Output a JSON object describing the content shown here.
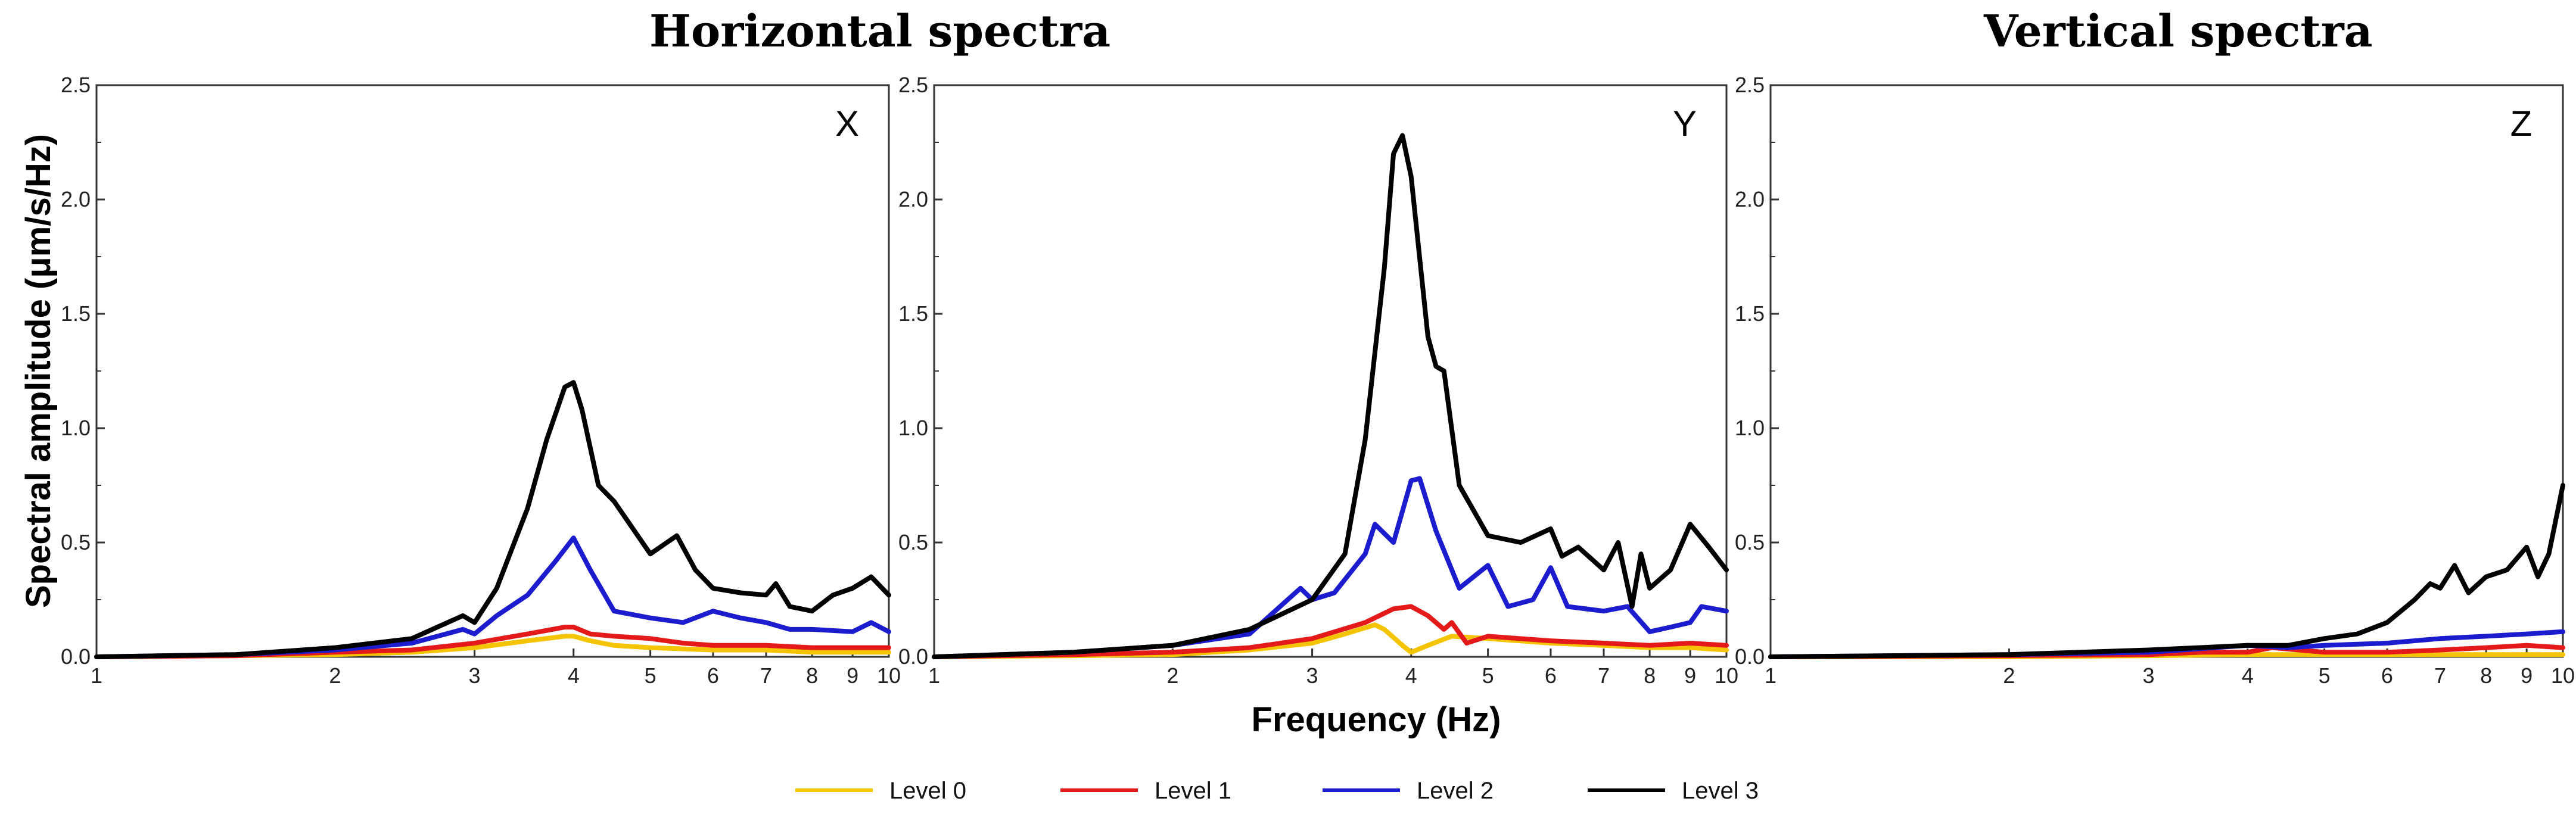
{
  "titles": {
    "horizontal": "Horizontal spectra",
    "vertical": "Vertical spectra"
  },
  "colors": {
    "level0": "#f5c400",
    "level1": "#e41a1a",
    "level2": "#1c1ccf",
    "level3": "#000000"
  },
  "chart_data": {
    "type": "line",
    "xlabel": "Frequency (Hz)",
    "ylabel": "Spectral amplitude (μm/s/Hz)",
    "xscale": "log",
    "xlim": [
      1,
      10
    ],
    "ylim": [
      0,
      2.5
    ],
    "xticks": [
      1,
      2,
      3,
      4,
      5,
      6,
      7,
      8,
      9,
      10
    ],
    "xtick_labels": [
      "1",
      "2",
      "3",
      "4",
      "5",
      "6",
      "7",
      "8",
      "9",
      "10"
    ],
    "yticks": [
      0,
      0.5,
      1.0,
      1.5,
      2.0,
      2.5
    ],
    "ytick_labels": [
      "0.0",
      "0.5",
      "1.0",
      "1.5",
      "2.0",
      "2.5"
    ],
    "legend": [
      "Level 0",
      "Level 1",
      "Level 2",
      "Level 3"
    ],
    "panels": [
      {
        "label": "X",
        "series": [
          {
            "name": "Level 0",
            "x": [
              1.0,
              1.5,
              2.0,
              2.5,
              3.0,
              3.5,
              3.9,
              4.0,
              4.2,
              4.5,
              5.0,
              6.0,
              7.0,
              8.0,
              9.0,
              10.0
            ],
            "y": [
              0.0,
              0.005,
              0.01,
              0.02,
              0.04,
              0.07,
              0.09,
              0.09,
              0.07,
              0.05,
              0.04,
              0.03,
              0.03,
              0.02,
              0.02,
              0.02
            ]
          },
          {
            "name": "Level 1",
            "x": [
              1.0,
              1.5,
              2.0,
              2.5,
              3.0,
              3.5,
              3.9,
              4.0,
              4.2,
              4.5,
              5.0,
              5.5,
              6.0,
              7.0,
              8.0,
              9.0,
              10.0
            ],
            "y": [
              0.0,
              0.005,
              0.02,
              0.03,
              0.06,
              0.1,
              0.13,
              0.13,
              0.1,
              0.09,
              0.08,
              0.06,
              0.05,
              0.05,
              0.04,
              0.04,
              0.04
            ]
          },
          {
            "name": "Level 2",
            "x": [
              1.0,
              1.5,
              2.0,
              2.5,
              2.9,
              3.0,
              3.2,
              3.5,
              3.8,
              4.0,
              4.2,
              4.5,
              5.0,
              5.5,
              6.0,
              6.5,
              7.0,
              7.5,
              8.0,
              9.0,
              9.5,
              10.0
            ],
            "y": [
              0.0,
              0.01,
              0.03,
              0.06,
              0.12,
              0.1,
              0.18,
              0.27,
              0.42,
              0.52,
              0.38,
              0.2,
              0.17,
              0.15,
              0.2,
              0.17,
              0.15,
              0.12,
              0.12,
              0.11,
              0.15,
              0.11
            ]
          },
          {
            "name": "Level 3",
            "x": [
              1.0,
              1.5,
              2.0,
              2.5,
              2.9,
              3.0,
              3.2,
              3.5,
              3.7,
              3.9,
              4.0,
              4.1,
              4.3,
              4.5,
              5.0,
              5.4,
              5.7,
              6.0,
              6.5,
              7.0,
              7.2,
              7.5,
              8.0,
              8.5,
              9.0,
              9.5,
              10.0
            ],
            "y": [
              0.0,
              0.01,
              0.04,
              0.08,
              0.18,
              0.15,
              0.3,
              0.65,
              0.95,
              1.18,
              1.2,
              1.08,
              0.75,
              0.68,
              0.45,
              0.53,
              0.38,
              0.3,
              0.28,
              0.27,
              0.32,
              0.22,
              0.2,
              0.27,
              0.3,
              0.35,
              0.27
            ]
          }
        ]
      },
      {
        "label": "Y",
        "series": [
          {
            "name": "Level 0",
            "x": [
              1.0,
              1.5,
              2.0,
              2.5,
              3.0,
              3.3,
              3.6,
              3.7,
              3.9,
              4.0,
              4.2,
              4.5,
              5.0,
              6.0,
              7.0,
              8.0,
              9.0,
              10.0
            ],
            "y": [
              0.0,
              0.005,
              0.01,
              0.03,
              0.06,
              0.1,
              0.14,
              0.12,
              0.05,
              0.02,
              0.05,
              0.09,
              0.08,
              0.06,
              0.05,
              0.04,
              0.04,
              0.03
            ]
          },
          {
            "name": "Level 1",
            "x": [
              1.0,
              1.5,
              2.0,
              2.5,
              3.0,
              3.5,
              3.8,
              4.0,
              4.2,
              4.4,
              4.5,
              4.7,
              5.0,
              6.0,
              7.0,
              8.0,
              9.0,
              10.0
            ],
            "y": [
              0.0,
              0.01,
              0.02,
              0.04,
              0.08,
              0.15,
              0.21,
              0.22,
              0.18,
              0.12,
              0.15,
              0.06,
              0.09,
              0.07,
              0.06,
              0.05,
              0.06,
              0.05
            ]
          },
          {
            "name": "Level 2",
            "x": [
              1.0,
              1.5,
              2.0,
              2.5,
              2.9,
              3.0,
              3.2,
              3.5,
              3.6,
              3.8,
              4.0,
              4.1,
              4.3,
              4.6,
              5.0,
              5.3,
              5.7,
              6.0,
              6.3,
              7.0,
              7.5,
              8.0,
              8.5,
              9.0,
              9.3,
              10.0
            ],
            "y": [
              0.0,
              0.02,
              0.05,
              0.1,
              0.3,
              0.25,
              0.28,
              0.45,
              0.58,
              0.5,
              0.77,
              0.78,
              0.55,
              0.3,
              0.4,
              0.22,
              0.25,
              0.39,
              0.22,
              0.2,
              0.22,
              0.11,
              0.13,
              0.15,
              0.22,
              0.2
            ]
          },
          {
            "name": "Level 3",
            "x": [
              1.0,
              1.5,
              2.0,
              2.5,
              3.0,
              3.3,
              3.5,
              3.7,
              3.8,
              3.9,
              4.0,
              4.2,
              4.3,
              4.4,
              4.6,
              5.0,
              5.5,
              6.0,
              6.2,
              6.5,
              7.0,
              7.3,
              7.6,
              7.8,
              8.0,
              8.5,
              9.0,
              9.5,
              10.0
            ],
            "y": [
              0.0,
              0.02,
              0.05,
              0.12,
              0.25,
              0.45,
              0.95,
              1.7,
              2.2,
              2.28,
              2.1,
              1.4,
              1.27,
              1.25,
              0.75,
              0.53,
              0.5,
              0.56,
              0.44,
              0.48,
              0.38,
              0.5,
              0.22,
              0.45,
              0.3,
              0.38,
              0.58,
              0.48,
              0.38
            ]
          }
        ]
      },
      {
        "label": "Z",
        "series": [
          {
            "name": "Level 0",
            "x": [
              1.0,
              2.0,
              3.0,
              4.0,
              5.0,
              6.0,
              7.0,
              8.0,
              9.0,
              10.0
            ],
            "y": [
              0.0,
              0.0,
              0.005,
              0.01,
              0.01,
              0.01,
              0.01,
              0.01,
              0.01,
              0.01
            ]
          },
          {
            "name": "Level 1",
            "x": [
              1.0,
              2.0,
              3.0,
              3.5,
              4.0,
              4.3,
              5.0,
              6.0,
              7.0,
              8.0,
              9.0,
              10.0
            ],
            "y": [
              0.0,
              0.005,
              0.01,
              0.02,
              0.02,
              0.04,
              0.02,
              0.02,
              0.03,
              0.04,
              0.05,
              0.04
            ]
          },
          {
            "name": "Level 2",
            "x": [
              1.0,
              2.0,
              3.0,
              4.0,
              4.5,
              5.0,
              6.0,
              7.0,
              8.0,
              9.0,
              10.0
            ],
            "y": [
              0.0,
              0.01,
              0.02,
              0.05,
              0.04,
              0.05,
              0.06,
              0.08,
              0.09,
              0.1,
              0.11
            ]
          },
          {
            "name": "Level 3",
            "x": [
              1.0,
              2.0,
              3.0,
              4.0,
              4.5,
              5.0,
              5.5,
              6.0,
              6.5,
              6.8,
              7.0,
              7.3,
              7.6,
              8.0,
              8.5,
              9.0,
              9.3,
              9.6,
              10.0
            ],
            "y": [
              0.0,
              0.01,
              0.03,
              0.05,
              0.05,
              0.08,
              0.1,
              0.15,
              0.25,
              0.32,
              0.3,
              0.4,
              0.28,
              0.35,
              0.38,
              0.48,
              0.35,
              0.45,
              0.75
            ]
          }
        ]
      }
    ]
  }
}
